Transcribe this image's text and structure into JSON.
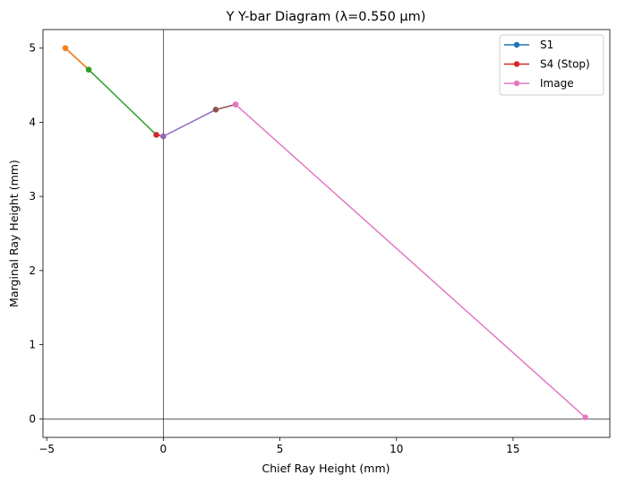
{
  "chart_data": {
    "type": "line",
    "title": "Y Y-bar Diagram (λ=0.550 µm)",
    "xlabel": "Chief Ray Height (mm)",
    "ylabel": "Marginal Ray Height (mm)",
    "xlim": [
      -5.16,
      19.15
    ],
    "ylim": [
      -0.25,
      5.25
    ],
    "xticks": [
      -5,
      0,
      5,
      10,
      15
    ],
    "yticks": [
      0,
      1,
      2,
      3,
      4,
      5
    ],
    "grid": false,
    "reference_lines": {
      "x": 0,
      "y": 0
    },
    "legend": {
      "placement": "top-right",
      "entries": [
        {
          "label": "S1",
          "color": "#1f77b4"
        },
        {
          "label": "S4 (Stop)",
          "color": "#d62728"
        },
        {
          "label": "Image",
          "color": "#e377c2"
        }
      ]
    },
    "segments": [
      {
        "color": "#1f77b4",
        "points": [
          [
            -4.2,
            5.0
          ],
          [
            -3.2,
            4.71
          ]
        ]
      },
      {
        "color": "#ff7f0e",
        "points": [
          [
            -4.2,
            5.0
          ],
          [
            -3.2,
            4.71
          ]
        ]
      },
      {
        "color": "#2ca02c",
        "points": [
          [
            -3.2,
            4.71
          ],
          [
            -0.3,
            3.83
          ]
        ]
      },
      {
        "color": "#d62728",
        "points": [
          [
            -0.3,
            3.83
          ],
          [
            0.0,
            3.81
          ]
        ]
      },
      {
        "color": "#9467bd",
        "points": [
          [
            0.0,
            3.81
          ],
          [
            2.25,
            4.17
          ]
        ]
      },
      {
        "color": "#8c564b",
        "points": [
          [
            2.25,
            4.17
          ],
          [
            3.1,
            4.24
          ]
        ]
      },
      {
        "color": "#e377c2",
        "points": [
          [
            3.1,
            4.24
          ],
          [
            18.1,
            0.02
          ]
        ]
      }
    ]
  }
}
